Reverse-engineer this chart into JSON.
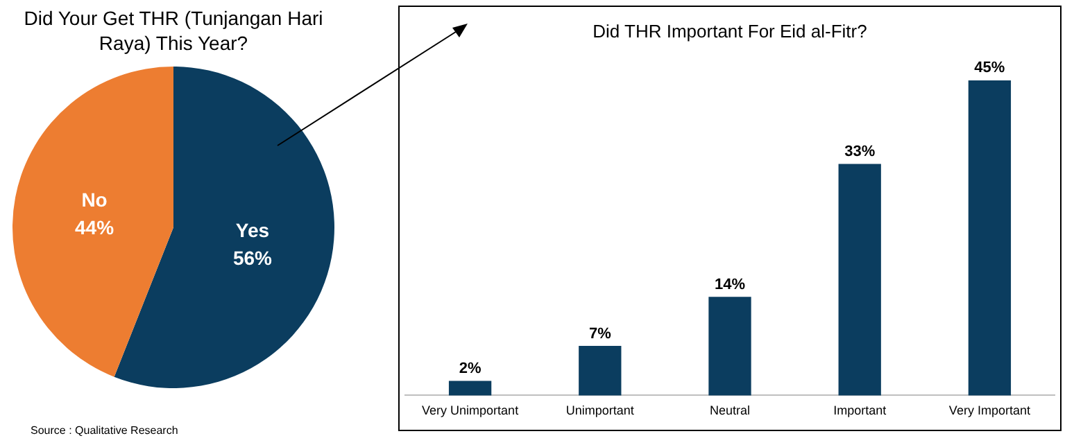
{
  "chart_data": [
    {
      "type": "pie",
      "title": "Did Your Get THR (Tunjangan Hari Raya) This Year?",
      "categories": [
        "Yes",
        "No"
      ],
      "values": [
        56,
        44
      ],
      "colors": [
        "#0b3d5f",
        "#ed7d31"
      ],
      "value_labels": [
        "56%",
        "44%"
      ],
      "legend": false,
      "annotations": [
        "Source : Qualitative Research"
      ]
    },
    {
      "type": "bar",
      "title": "Did THR Important For Eid al-Fitr?",
      "categories": [
        "Very Unimportant",
        "Unimportant",
        "Neutral",
        "Important",
        "Very Important"
      ],
      "values": [
        2,
        7,
        14,
        33,
        45
      ],
      "color": "#0b3d5f",
      "value_labels": [
        "2%",
        "7%",
        "14%",
        "33%",
        "45%"
      ],
      "legend": false
    }
  ]
}
